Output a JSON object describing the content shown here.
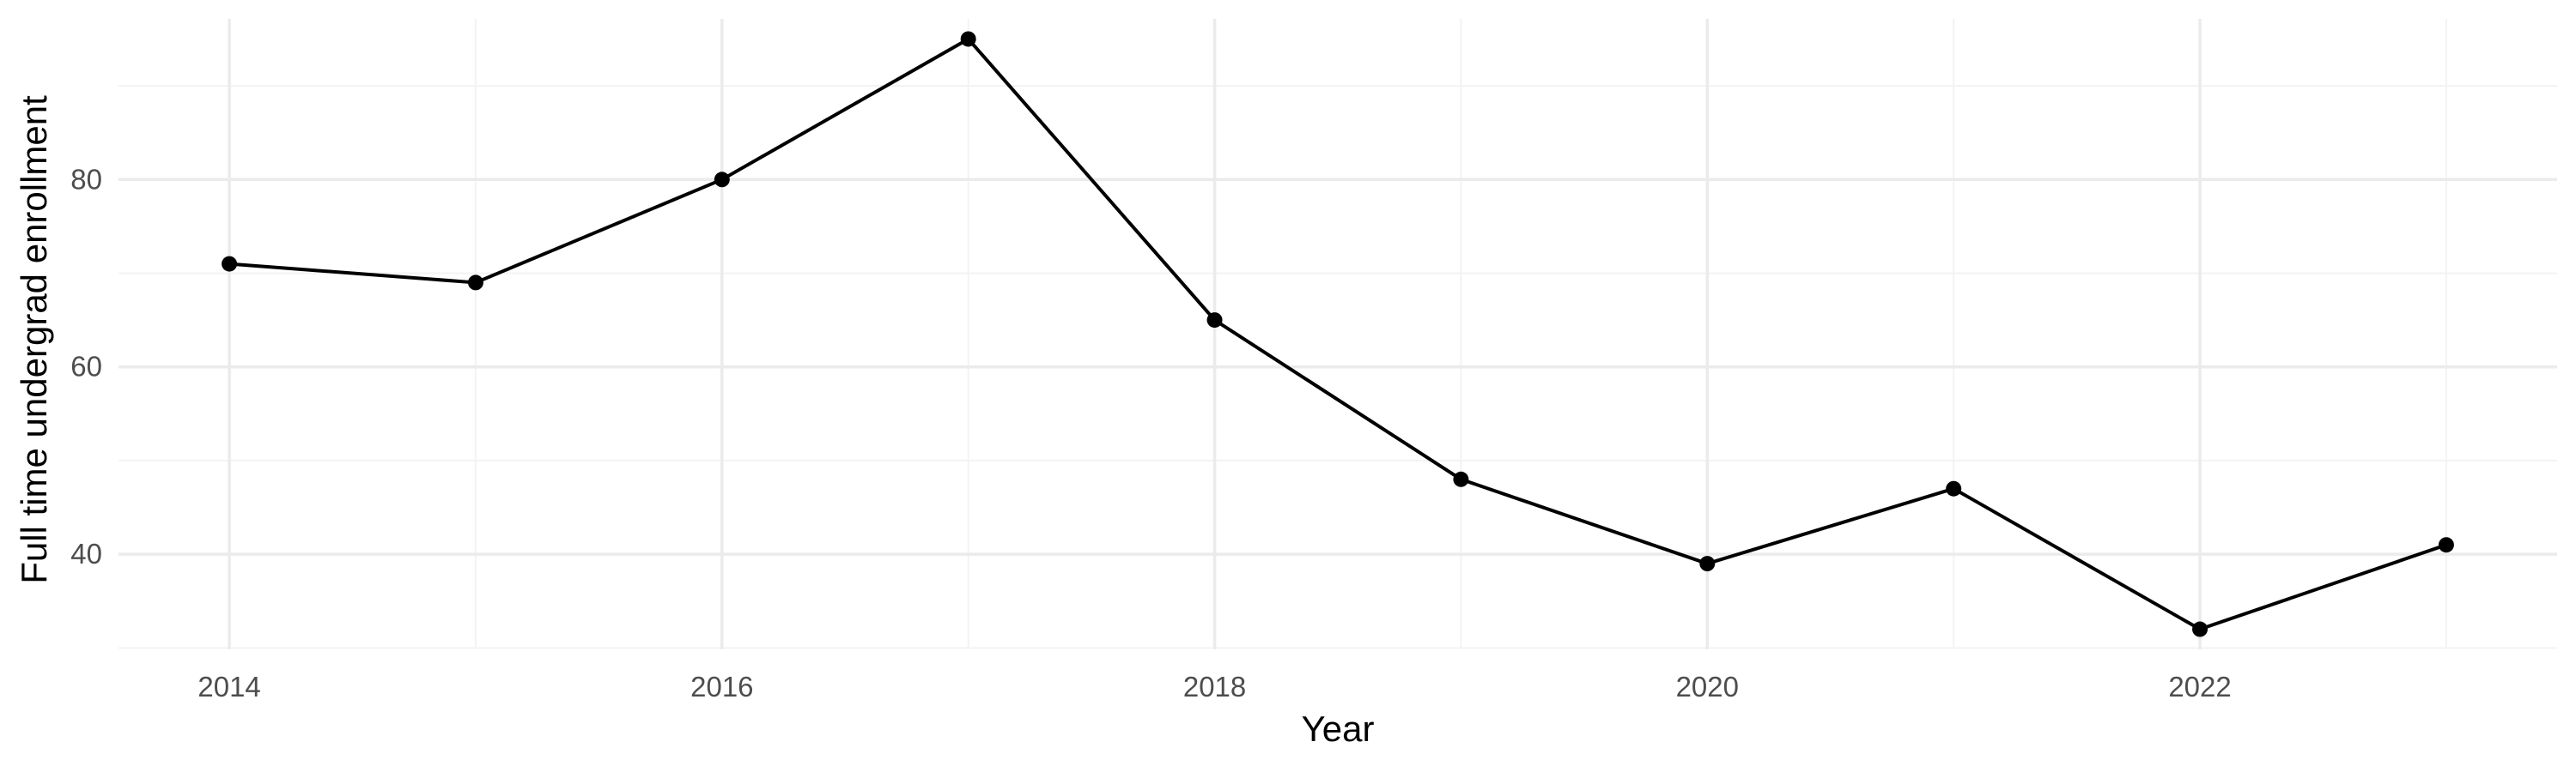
{
  "chart_data": {
    "type": "line",
    "title": "",
    "xlabel": "Year",
    "ylabel": "Full time undergrad enrollment",
    "x": [
      2014,
      2015,
      2016,
      2017,
      2018,
      2019,
      2020,
      2021,
      2022,
      2023
    ],
    "series": [
      {
        "values": [
          71,
          69,
          80,
          95,
          65,
          48,
          39,
          47,
          32,
          41
        ]
      }
    ],
    "x_ticks": [
      2014,
      2016,
      2018,
      2020,
      2022
    ],
    "x_tick_labels": [
      "2014",
      "2016",
      "2018",
      "2020",
      "2022"
    ],
    "y_ticks": [
      40,
      60,
      80
    ],
    "y_tick_labels": [
      "40",
      "60",
      "80"
    ],
    "xlim": [
      2013.55,
      2023.45
    ],
    "ylim": [
      29.85,
      97.15
    ],
    "grid": true,
    "line_color": "#000000",
    "grid_color": "#ebebeb"
  }
}
